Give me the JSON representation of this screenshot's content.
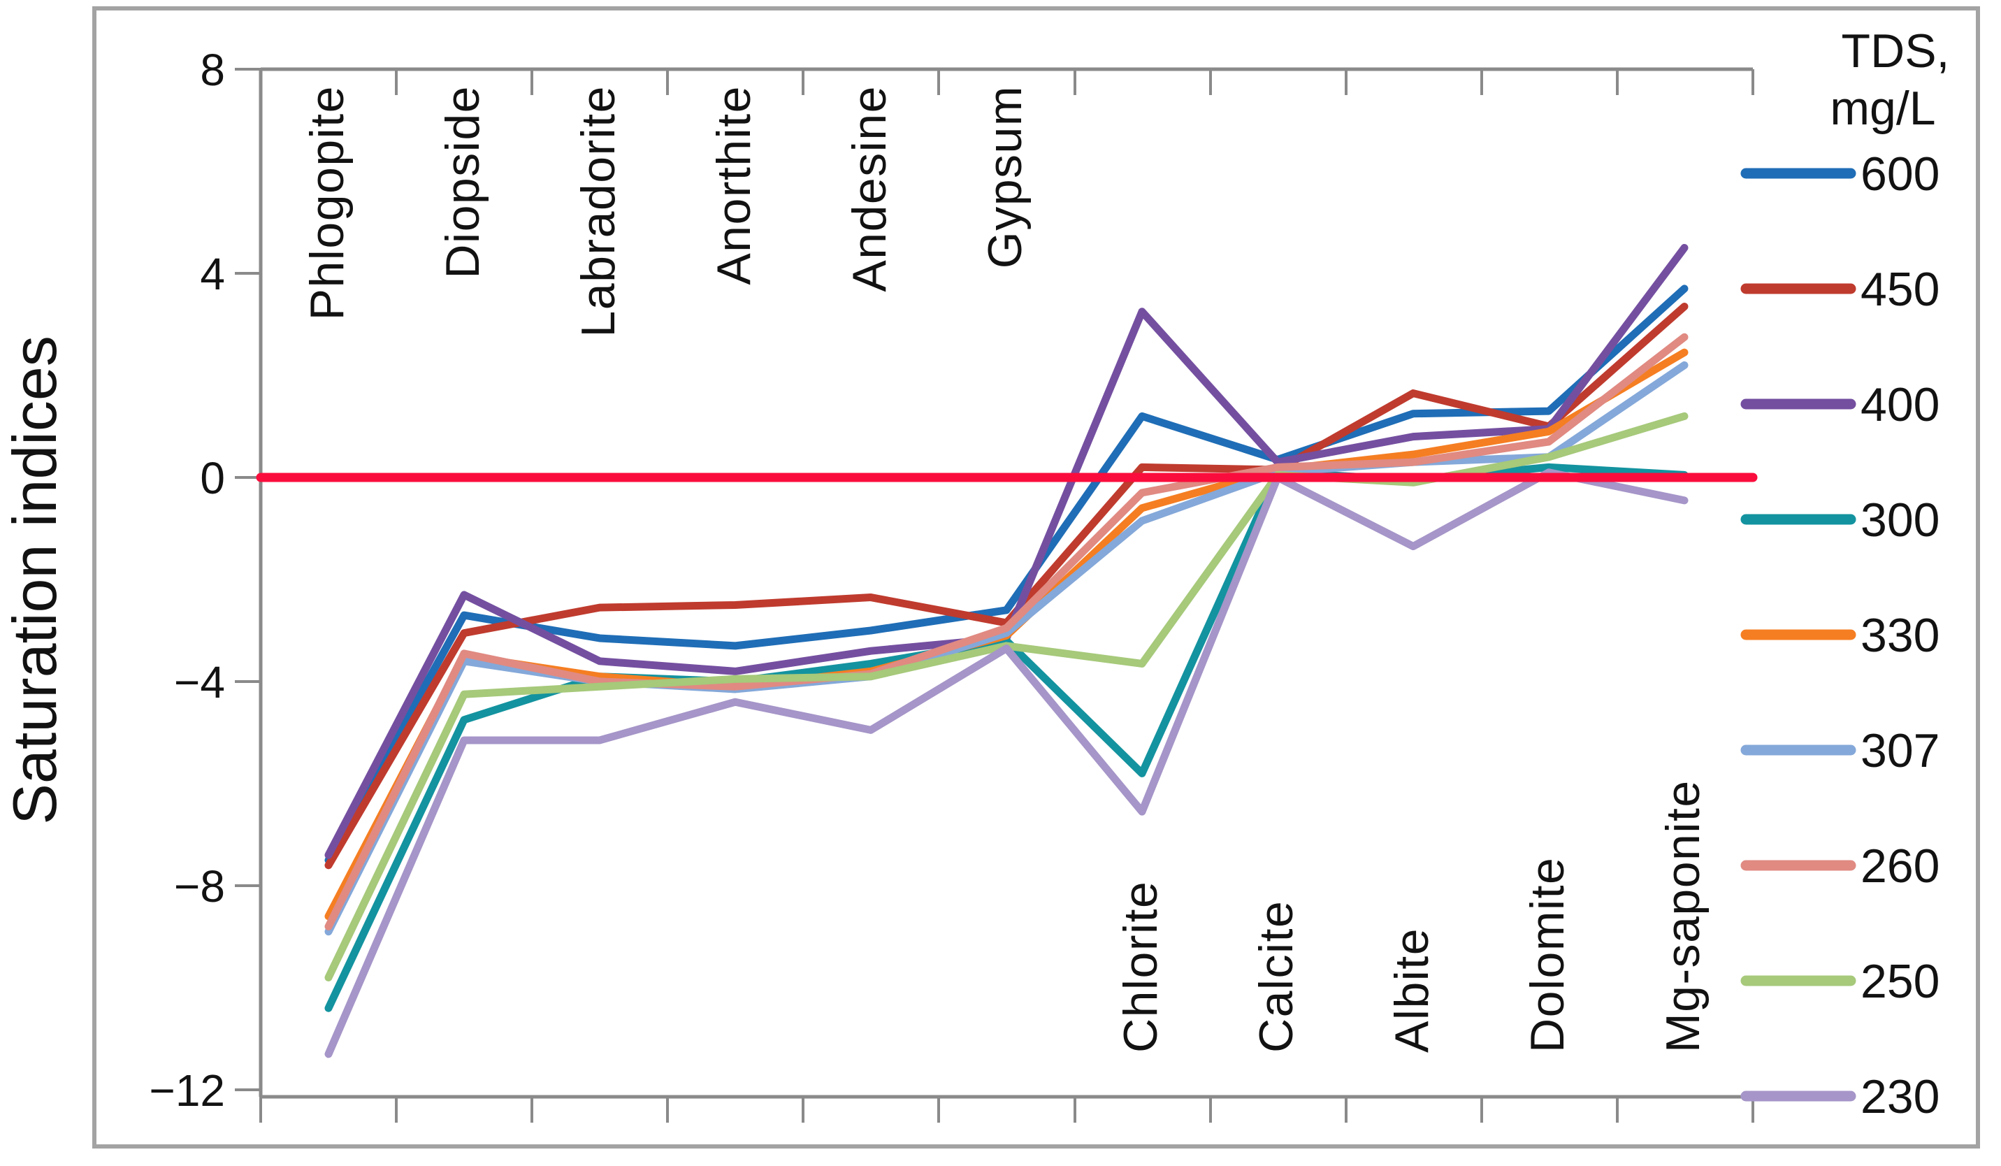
{
  "chart_data": {
    "type": "line",
    "title": "",
    "ylabel": "Saturation indices",
    "xlabel": "",
    "categories": [
      "Phlogopite",
      "Diopside",
      "Labradorite",
      "Anorthite",
      "Andesine",
      "Gypsum",
      "Chlorite",
      "Calcite",
      "Albite",
      "Dolomite",
      "Mg-saponite"
    ],
    "category_label_position": [
      "top",
      "top",
      "top",
      "top",
      "top",
      "top",
      "bottom",
      "bottom",
      "bottom",
      "bottom",
      "bottom"
    ],
    "y_tick_values": [
      8,
      4,
      0,
      -4,
      -8,
      -12
    ],
    "y_tick_labels": [
      "8",
      "4",
      "0",
      "−4",
      "−8",
      "−12"
    ],
    "ylim": [
      -12.1,
      8
    ],
    "grid": "off",
    "zero_line": {
      "value": 0,
      "color": "#fa0d3c"
    },
    "legend_position": "right",
    "legend_title": "TDS, mg/L",
    "series": [
      {
        "name": "600",
        "color": "#1f6db6",
        "values": [
          -7.5,
          -2.7,
          -3.15,
          -3.3,
          -3.0,
          -2.6,
          1.2,
          0.35,
          1.25,
          1.3,
          3.7
        ]
      },
      {
        "name": "450",
        "color": "#bf3b2e",
        "values": [
          -7.6,
          -3.05,
          -2.55,
          -2.5,
          -2.35,
          -2.85,
          0.2,
          0.15,
          1.65,
          1.0,
          3.35
        ]
      },
      {
        "name": "400",
        "color": "#744fa0",
        "values": [
          -7.4,
          -2.3,
          -3.6,
          -3.8,
          -3.4,
          -3.15,
          3.25,
          0.3,
          0.8,
          0.95,
          4.5
        ]
      },
      {
        "name": "300",
        "color": "#13939f",
        "values": [
          -10.4,
          -4.75,
          -3.9,
          -4.0,
          -3.65,
          -3.2,
          -5.8,
          0.1,
          -0.05,
          0.2,
          0.05
        ]
      },
      {
        "name": "330",
        "color": "#f57e22",
        "values": [
          -8.6,
          -3.5,
          -3.9,
          -4.1,
          -3.8,
          -3.1,
          -0.6,
          0.15,
          0.45,
          0.9,
          2.45
        ]
      },
      {
        "name": "307",
        "color": "#84a8d9",
        "values": [
          -8.9,
          -3.6,
          -4.0,
          -4.15,
          -3.9,
          -3.05,
          -0.85,
          0.1,
          0.3,
          0.4,
          2.2
        ]
      },
      {
        "name": "260",
        "color": "#e08a82",
        "values": [
          -8.8,
          -3.45,
          -4.0,
          -4.1,
          -3.85,
          -2.95,
          -0.3,
          0.2,
          0.3,
          0.7,
          2.75
        ]
      },
      {
        "name": "250",
        "color": "#a6c97a",
        "values": [
          -9.8,
          -4.25,
          -4.1,
          -3.95,
          -3.9,
          -3.3,
          -3.65,
          0.05,
          -0.1,
          0.4,
          1.2
        ]
      },
      {
        "name": "230",
        "color": "#a595c8",
        "values": [
          -11.3,
          -5.15,
          -5.15,
          -4.4,
          -4.95,
          -3.35,
          -6.55,
          0.0,
          -1.35,
          0.1,
          -0.45
        ]
      }
    ]
  },
  "legend": {
    "title_line1": "TDS,",
    "title_line2": "mg/L",
    "entries": [
      "600",
      "450",
      "400",
      "300",
      "330",
      "307",
      "260",
      "250",
      "230"
    ]
  },
  "style": {
    "axis_color": "#8a8a8a",
    "border_color": "#a3a3a3",
    "text_color": "#121212"
  }
}
